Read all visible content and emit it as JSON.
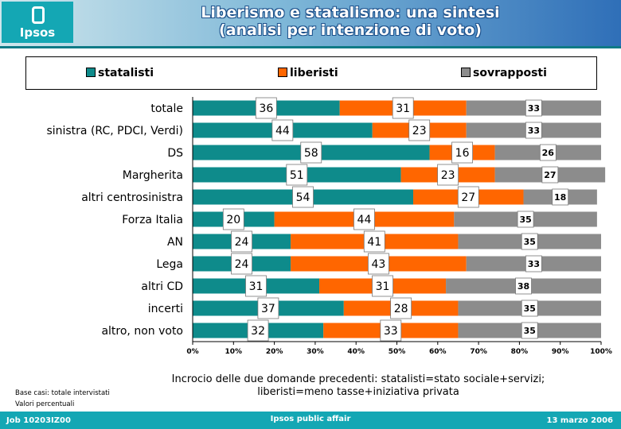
{
  "header": {
    "logo_text": "Ipsos",
    "title_line1": "Liberismo e statalismo: una sintesi",
    "title_line2": "(analisi per intenzione di voto)"
  },
  "colors": {
    "statalisti": "#0e8b8b",
    "liberisti": "#ff6600",
    "sovrapposti": "#8c8c8c",
    "accent": "#14a7b4"
  },
  "chart_data": {
    "type": "bar",
    "orientation": "horizontal",
    "stacked": true,
    "percent_stacked": true,
    "categories": [
      "totale",
      "sinistra (RC, PDCI, Verdi)",
      "DS",
      "Margherita",
      "altri centrosinistra",
      "Forza Italia",
      "AN",
      "Lega",
      "altri CD",
      "incerti",
      "altro, non voto"
    ],
    "series": [
      {
        "name": "statalisti",
        "values": [
          36,
          44,
          58,
          51,
          54,
          20,
          24,
          24,
          31,
          37,
          32
        ]
      },
      {
        "name": "liberisti",
        "values": [
          31,
          23,
          16,
          23,
          27,
          44,
          41,
          43,
          31,
          28,
          33
        ]
      },
      {
        "name": "sovrapposti",
        "values": [
          33,
          33,
          26,
          27,
          18,
          35,
          35,
          33,
          38,
          35,
          35
        ]
      }
    ],
    "xlim": [
      0,
      100
    ],
    "x_ticks": [
      "0%",
      "10%",
      "20%",
      "30%",
      "40%",
      "50%",
      "60%",
      "70%",
      "80%",
      "90%",
      "100%"
    ],
    "legend_position": "top",
    "data_labels": true
  },
  "notes": {
    "line1": "Incrocio delle due domande precedenti: statalisti=stato sociale+servizi;",
    "line2": "liberisti=meno tasse+iniziativa privata",
    "base": "Base casi: totale intervistati",
    "values": "Valori percentuali"
  },
  "footer": {
    "job": "Job 10203IZ00",
    "center": "Ipsos public affair",
    "date": "13 marzo 2006"
  }
}
